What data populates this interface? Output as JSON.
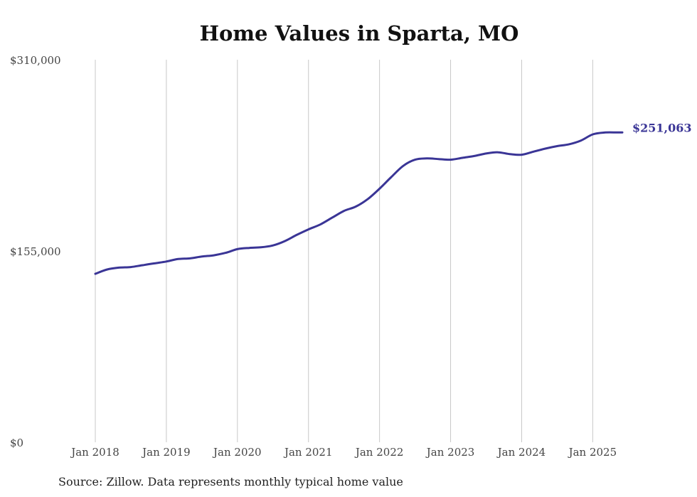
{
  "chart_data": {
    "type": "line",
    "title": "Home Values in Sparta, MO",
    "source": "Source: Zillow. Data represents monthly typical home value",
    "y_ticks": [
      {
        "value": 0,
        "label": "$0"
      },
      {
        "value": 155000,
        "label": "$155,000"
      },
      {
        "value": 310000,
        "label": "$310,000"
      }
    ],
    "ylim": [
      0,
      310000
    ],
    "x_ticks": [
      {
        "value": "2018-01",
        "label": "Jan 2018"
      },
      {
        "value": "2019-01",
        "label": "Jan 2019"
      },
      {
        "value": "2020-01",
        "label": "Jan 2020"
      },
      {
        "value": "2021-01",
        "label": "Jan 2021"
      },
      {
        "value": "2022-01",
        "label": "Jan 2022"
      },
      {
        "value": "2023-01",
        "label": "Jan 2023"
      },
      {
        "value": "2024-01",
        "label": "Jan 2024"
      },
      {
        "value": "2025-01",
        "label": "Jan 2025"
      }
    ],
    "xlim": [
      "2018-01",
      "2025-06"
    ],
    "grid": "vertical",
    "color": "#3a3596",
    "end_label": "$251,063",
    "series": [
      {
        "values": [
          [
            "2018-01",
            136500
          ],
          [
            "2018-03",
            140000
          ],
          [
            "2018-05",
            141500
          ],
          [
            "2018-07",
            142000
          ],
          [
            "2018-09",
            143500
          ],
          [
            "2018-11",
            145000
          ],
          [
            "2019-01",
            146500
          ],
          [
            "2019-03",
            148500
          ],
          [
            "2019-05",
            149000
          ],
          [
            "2019-07",
            150500
          ],
          [
            "2019-09",
            151500
          ],
          [
            "2019-11",
            153500
          ],
          [
            "2020-01",
            156500
          ],
          [
            "2020-03",
            157500
          ],
          [
            "2020-05",
            158000
          ],
          [
            "2020-07",
            159500
          ],
          [
            "2020-09",
            163000
          ],
          [
            "2020-11",
            168000
          ],
          [
            "2021-01",
            172500
          ],
          [
            "2021-03",
            176500
          ],
          [
            "2021-05",
            182000
          ],
          [
            "2021-07",
            187500
          ],
          [
            "2021-09",
            191000
          ],
          [
            "2021-11",
            197000
          ],
          [
            "2022-01",
            205500
          ],
          [
            "2022-03",
            215000
          ],
          [
            "2022-05",
            224000
          ],
          [
            "2022-07",
            229000
          ],
          [
            "2022-09",
            230000
          ],
          [
            "2022-11",
            229500
          ],
          [
            "2023-01",
            229000
          ],
          [
            "2023-03",
            230500
          ],
          [
            "2023-05",
            232000
          ],
          [
            "2023-07",
            234000
          ],
          [
            "2023-09",
            235000
          ],
          [
            "2023-11",
            233500
          ],
          [
            "2024-01",
            233000
          ],
          [
            "2024-03",
            235500
          ],
          [
            "2024-05",
            238000
          ],
          [
            "2024-07",
            240000
          ],
          [
            "2024-09",
            241500
          ],
          [
            "2024-11",
            244500
          ],
          [
            "2025-01",
            249500
          ],
          [
            "2025-03",
            251000
          ],
          [
            "2025-05",
            251063
          ],
          [
            "2025-06",
            251063
          ]
        ]
      }
    ]
  }
}
